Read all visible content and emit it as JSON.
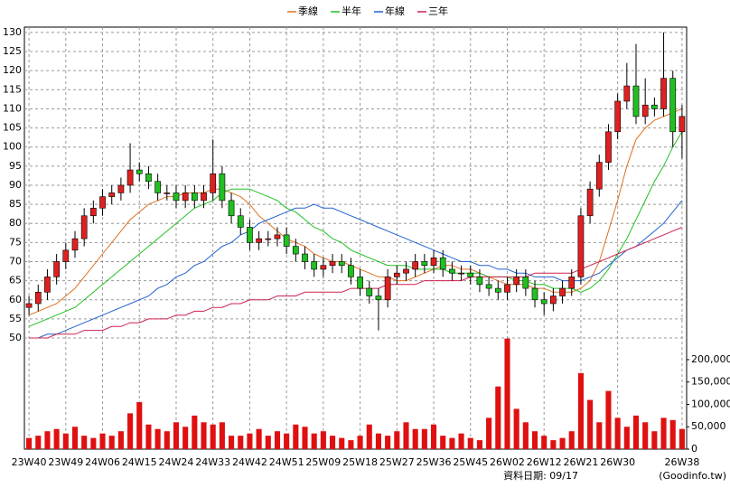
{
  "chart_data": {
    "type": "candlestick",
    "legend": "top",
    "grid": true,
    "series": [
      {
        "name": "季線",
        "color": "#e07020",
        "values": [
          56,
          57,
          58,
          59,
          61,
          63,
          66,
          69,
          72,
          75,
          78,
          81,
          83,
          85,
          86,
          87,
          87,
          88,
          88,
          88,
          89,
          89,
          88,
          87,
          85,
          82,
          80,
          78,
          76,
          75,
          74,
          72,
          71,
          70,
          70,
          69,
          68,
          67,
          66,
          66,
          65,
          65,
          66,
          67,
          68,
          69,
          69,
          68,
          68,
          67,
          66,
          65,
          64,
          64,
          64,
          63,
          63,
          62,
          62,
          62,
          63,
          65,
          70,
          78,
          86,
          95,
          102,
          105,
          107,
          108,
          109,
          110
        ]
      },
      {
        "name": "半年",
        "color": "#20c020",
        "values": [
          53,
          54,
          55,
          56,
          57,
          58,
          60,
          62,
          64,
          66,
          68,
          70,
          72,
          74,
          76,
          78,
          80,
          82,
          84,
          85,
          86,
          88,
          89,
          89,
          89,
          88,
          87,
          86,
          84,
          83,
          81,
          79,
          78,
          76,
          75,
          73,
          72,
          71,
          70,
          69,
          69,
          69,
          68,
          68,
          68,
          68,
          67,
          67,
          67,
          67,
          66,
          66,
          66,
          65,
          65,
          64,
          64,
          63,
          63,
          63,
          62,
          63,
          65,
          68,
          72,
          76,
          81,
          86,
          91,
          95,
          100,
          104
        ]
      },
      {
        "name": "年線",
        "color": "#2060d0",
        "values": [
          50,
          50,
          51,
          51,
          52,
          53,
          54,
          55,
          56,
          57,
          58,
          59,
          60,
          61,
          63,
          64,
          66,
          67,
          69,
          70,
          72,
          74,
          75,
          77,
          78,
          80,
          81,
          82,
          83,
          84,
          84,
          85,
          84,
          84,
          83,
          82,
          81,
          80,
          79,
          78,
          77,
          76,
          75,
          74,
          73,
          72,
          71,
          70,
          70,
          69,
          69,
          68,
          68,
          67,
          67,
          66,
          66,
          66,
          65,
          65,
          65,
          66,
          67,
          69,
          71,
          73,
          74,
          76,
          78,
          80,
          83,
          86
        ]
      },
      {
        "name": "三年",
        "color": "#d02050",
        "values": [
          50,
          50,
          50,
          51,
          51,
          51,
          52,
          52,
          52,
          53,
          53,
          54,
          54,
          55,
          55,
          55,
          56,
          56,
          57,
          57,
          58,
          58,
          59,
          59,
          60,
          60,
          60,
          61,
          61,
          61,
          62,
          62,
          62,
          62,
          62,
          63,
          63,
          63,
          63,
          64,
          64,
          64,
          64,
          65,
          65,
          65,
          65,
          65,
          66,
          66,
          66,
          66,
          66,
          66,
          66,
          67,
          67,
          67,
          67,
          67,
          68,
          69,
          70,
          71,
          72,
          73,
          74,
          75,
          76,
          77,
          78,
          79
        ]
      }
    ],
    "categories": [
      "23W40",
      null,
      null,
      null,
      "23W49",
      null,
      null,
      null,
      "24W06",
      null,
      null,
      null,
      "24W15",
      null,
      null,
      null,
      "24W24",
      null,
      null,
      null,
      "24W33",
      null,
      null,
      null,
      "24W42",
      null,
      null,
      null,
      "24W51",
      null,
      null,
      null,
      "25W09",
      null,
      null,
      null,
      "25W18",
      null,
      null,
      null,
      "25W27",
      null,
      null,
      null,
      "25W36",
      null,
      null,
      null,
      "25W45",
      null,
      null,
      null,
      "26W02",
      null,
      null,
      null,
      "26W12",
      null,
      null,
      null,
      "26W21",
      null,
      null,
      null,
      "26W30",
      null,
      null,
      null,
      null,
      null,
      null,
      "26W38"
    ],
    "open": [
      58,
      59,
      62,
      66,
      70,
      73,
      76,
      82,
      84,
      87,
      88,
      90,
      94,
      93,
      91,
      88,
      88,
      86,
      88,
      86,
      88,
      93,
      86,
      82,
      79,
      75,
      76,
      76,
      77,
      74,
      72,
      70,
      68,
      69,
      70,
      69,
      66,
      63,
      61,
      60,
      66,
      67,
      68,
      70,
      69,
      71,
      68,
      67,
      67,
      66,
      64,
      63,
      62,
      64,
      66,
      63,
      60,
      59,
      61,
      63,
      66,
      82,
      89,
      96,
      104,
      112,
      116,
      108,
      111,
      110,
      118,
      104
    ],
    "high": [
      61,
      64,
      68,
      72,
      75,
      78,
      84,
      86,
      89,
      90,
      92,
      101,
      96,
      95,
      93,
      90,
      90,
      90,
      90,
      90,
      102,
      95,
      88,
      84,
      81,
      78,
      78,
      79,
      79,
      76,
      74,
      72,
      71,
      72,
      72,
      71,
      68,
      65,
      63,
      68,
      69,
      70,
      72,
      72,
      73,
      73,
      70,
      69,
      69,
      68,
      66,
      65,
      66,
      68,
      68,
      65,
      62,
      63,
      65,
      68,
      84,
      91,
      98,
      106,
      114,
      122,
      127,
      118,
      113,
      130,
      120,
      111
    ],
    "low": [
      56,
      57,
      60,
      64,
      68,
      71,
      74,
      80,
      82,
      85,
      86,
      88,
      91,
      89,
      86,
      86,
      84,
      84,
      84,
      84,
      86,
      84,
      80,
      77,
      73,
      73,
      74,
      74,
      72,
      70,
      68,
      66,
      66,
      67,
      67,
      64,
      61,
      59,
      52,
      58,
      64,
      65,
      66,
      67,
      67,
      66,
      65,
      65,
      64,
      62,
      61,
      60,
      60,
      62,
      61,
      58,
      56,
      57,
      59,
      61,
      64,
      80,
      87,
      94,
      102,
      110,
      106,
      106,
      108,
      108,
      100,
      97
    ],
    "close": [
      59,
      62,
      66,
      70,
      73,
      76,
      82,
      84,
      87,
      88,
      90,
      94,
      93,
      91,
      88,
      88,
      86,
      88,
      86,
      88,
      93,
      86,
      82,
      79,
      75,
      76,
      76,
      77,
      74,
      72,
      70,
      68,
      69,
      70,
      69,
      66,
      63,
      61,
      60,
      66,
      67,
      68,
      70,
      69,
      71,
      68,
      67,
      67,
      66,
      64,
      63,
      62,
      64,
      66,
      63,
      60,
      59,
      61,
      63,
      66,
      82,
      89,
      96,
      104,
      112,
      116,
      108,
      111,
      110,
      118,
      104,
      108
    ],
    "volume": [
      25000,
      30000,
      40000,
      45000,
      35000,
      50000,
      30000,
      25000,
      35000,
      30000,
      40000,
      80000,
      105000,
      55000,
      45000,
      40000,
      60000,
      50000,
      75000,
      60000,
      55000,
      60000,
      30000,
      30000,
      35000,
      45000,
      30000,
      40000,
      35000,
      55000,
      50000,
      35000,
      40000,
      30000,
      25000,
      20000,
      30000,
      55000,
      35000,
      30000,
      40000,
      60000,
      45000,
      45000,
      55000,
      30000,
      25000,
      35000,
      25000,
      20000,
      70000,
      140000,
      247000,
      90000,
      60000,
      40000,
      30000,
      20000,
      25000,
      40000,
      170000,
      110000,
      60000,
      130000,
      70000,
      50000,
      75000,
      60000,
      40000,
      70000,
      65000,
      45000
    ],
    "up_color": "#e02020",
    "down_color": "#20c020",
    "volume_color": "#e01010",
    "ylim": [
      20.9,
      131.4
    ],
    "yticks": [
      50,
      55,
      60,
      65,
      70,
      75,
      80,
      85,
      90,
      95,
      100,
      105,
      110,
      115,
      120,
      125,
      130
    ],
    "y2lim": [
      0,
      943000
    ],
    "y2ticks": [
      0,
      {
        "value": 50000,
        "label": "50,000"
      },
      {
        "value": 100000,
        "label": "100,000"
      },
      {
        "value": 150000,
        "label": "150,000"
      },
      {
        "value": 200000,
        "label": "200,000"
      }
    ],
    "note": "資料日期: 09/17",
    "source": "(Goodinfo.tw)"
  }
}
